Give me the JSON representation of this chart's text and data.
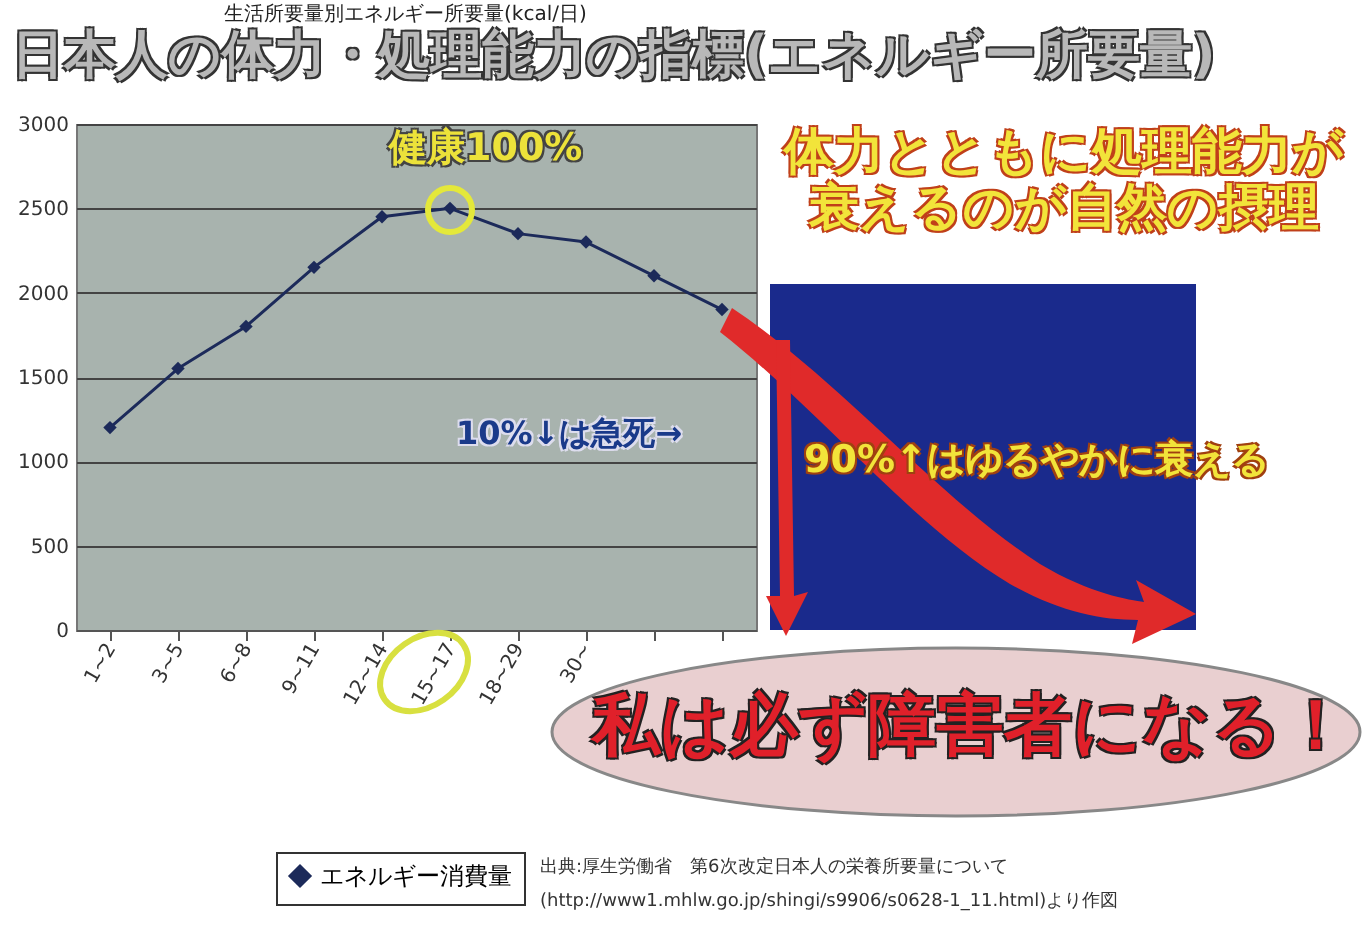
{
  "chart_data": {
    "type": "line",
    "title": "日本人の体力・処理能力の指標(エネルギー所要量)",
    "subtitle": "生活所要量別エネルギー所要量(kcal/日)",
    "categories": [
      "1~2",
      "3~5",
      "6~8",
      "9~11",
      "12~14",
      "15~17",
      "18~29",
      "30~",
      null,
      null
    ],
    "series": [
      {
        "name": "エネルギー消費量",
        "color": "#1c2a5a",
        "values": [
          1200,
          1550,
          1800,
          2150,
          2450,
          2500,
          2350,
          2300,
          2100,
          1900
        ]
      }
    ],
    "ylim": [
      0,
      3000
    ],
    "yticks": [
      0,
      500,
      1000,
      1500,
      2000,
      2500,
      3000
    ],
    "grid": "y",
    "legend": "bottom",
    "marker": "diamond",
    "line_style": "solid",
    "annotations": [
      {
        "text": "健康100%",
        "x": "15~17",
        "y": 2500
      },
      "体力とともに処理能力が衰えるのが自然の摂理",
      "10%↓は急死→",
      "90%↑はゆるやかに衰える",
      "私は必ず障害者になる！",
      "出典:厚生労働省　第6次改定日本人の栄養所要量について",
      "(http://www1.mhlw.go.jp/shingi/s9906/s0628-1_11.html)より作図"
    ]
  }
}
